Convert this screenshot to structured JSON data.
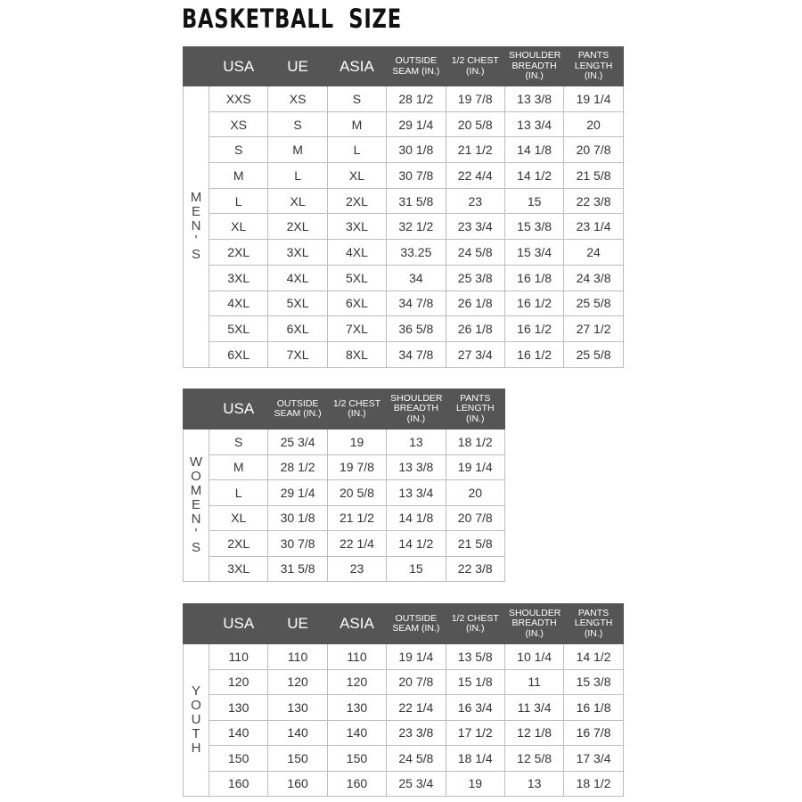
{
  "title": "BASKETBALL  SIZE",
  "colors": {
    "header_bg": "#555555",
    "header_text": "#ffffff",
    "border": "#bdbdbd",
    "text": "#333333"
  },
  "tables": [
    {
      "group": "MEN'S",
      "headers": [
        "USA",
        "UE",
        "ASIA",
        "OUTSIDE SEAM (IN.)",
        "1/2 CHEST (IN.)",
        "SHOULDER BREADTH (IN.)",
        "PANTS LENGTH (IN.)"
      ],
      "rows": [
        [
          "XXS",
          "XS",
          "S",
          "28 1/2",
          "19 7/8",
          "13 3/8",
          "19 1/4"
        ],
        [
          "XS",
          "S",
          "M",
          "29 1/4",
          "20 5/8",
          "13 3/4",
          "20"
        ],
        [
          "S",
          "M",
          "L",
          "30 1/8",
          "21 1/2",
          "14 1/8",
          "20 7/8"
        ],
        [
          "M",
          "L",
          "XL",
          "30 7/8",
          "22 4/4",
          "14 1/2",
          "21 5/8"
        ],
        [
          "L",
          "XL",
          "2XL",
          "31 5/8",
          "23",
          "15",
          "22 3/8"
        ],
        [
          "XL",
          "2XL",
          "3XL",
          "32 1/2",
          "23 3/4",
          "15 3/8",
          "23 1/4"
        ],
        [
          "2XL",
          "3XL",
          "4XL",
          "33.25",
          "24 5/8",
          "15 3/4",
          "24"
        ],
        [
          "3XL",
          "4XL",
          "5XL",
          "34",
          "25 3/8",
          "16 1/8",
          "24 3/8"
        ],
        [
          "4XL",
          "5XL",
          "6XL",
          "34 7/8",
          "26 1/8",
          "16 1/2",
          "25 5/8"
        ],
        [
          "5XL",
          "6XL",
          "7XL",
          "36 5/8",
          "26 1/8",
          "16 1/2",
          "27 1/2"
        ],
        [
          "6XL",
          "7XL",
          "8XL",
          "34 7/8",
          "27 3/4",
          "16 1/2",
          "25 5/8"
        ]
      ]
    },
    {
      "group": "WOMEN'S",
      "headers": [
        "USA",
        "OUTSIDE SEAM (IN.)",
        "1/2 CHEST (IN.)",
        "SHOULDER BREADTH (IN.)",
        "PANTS LENGTH (IN.)"
      ],
      "rows": [
        [
          "S",
          "25 3/4",
          "19",
          "13",
          "18 1/2"
        ],
        [
          "M",
          "28 1/2",
          "19 7/8",
          "13 3/8",
          "19 1/4"
        ],
        [
          "L",
          "29 1/4",
          "20 5/8",
          "13 3/4",
          "20"
        ],
        [
          "XL",
          "30 1/8",
          "21 1/2",
          "14 1/8",
          "20 7/8"
        ],
        [
          "2XL",
          "30 7/8",
          "22 1/4",
          "14 1/2",
          "21 5/8"
        ],
        [
          "3XL",
          "31 5/8",
          "23",
          "15",
          "22 3/8"
        ]
      ]
    },
    {
      "group": "YOUTH",
      "headers": [
        "USA",
        "UE",
        "ASIA",
        "OUTSIDE SEAM (IN.)",
        "1/2 CHEST (IN.)",
        "SHOULDER BREADTH (IN.)",
        "PANTS LENGTH (IN.)"
      ],
      "rows": [
        [
          "110",
          "110",
          "110",
          "19 1/4",
          "13 5/8",
          "10 1/4",
          "14 1/2"
        ],
        [
          "120",
          "120",
          "120",
          "20 7/8",
          "15 1/8",
          "11",
          "15 3/8"
        ],
        [
          "130",
          "130",
          "130",
          "22 1/4",
          "16 3/4",
          "11 3/4",
          "16 1/8"
        ],
        [
          "140",
          "140",
          "140",
          "23 3/8",
          "17 1/2",
          "12 1/8",
          "16 7/8"
        ],
        [
          "150",
          "150",
          "150",
          "24 5/8",
          "18 1/4",
          "12 5/8",
          "17 3/4"
        ],
        [
          "160",
          "160",
          "160",
          "25 3/4",
          "19",
          "13",
          "18 1/2"
        ]
      ]
    }
  ]
}
